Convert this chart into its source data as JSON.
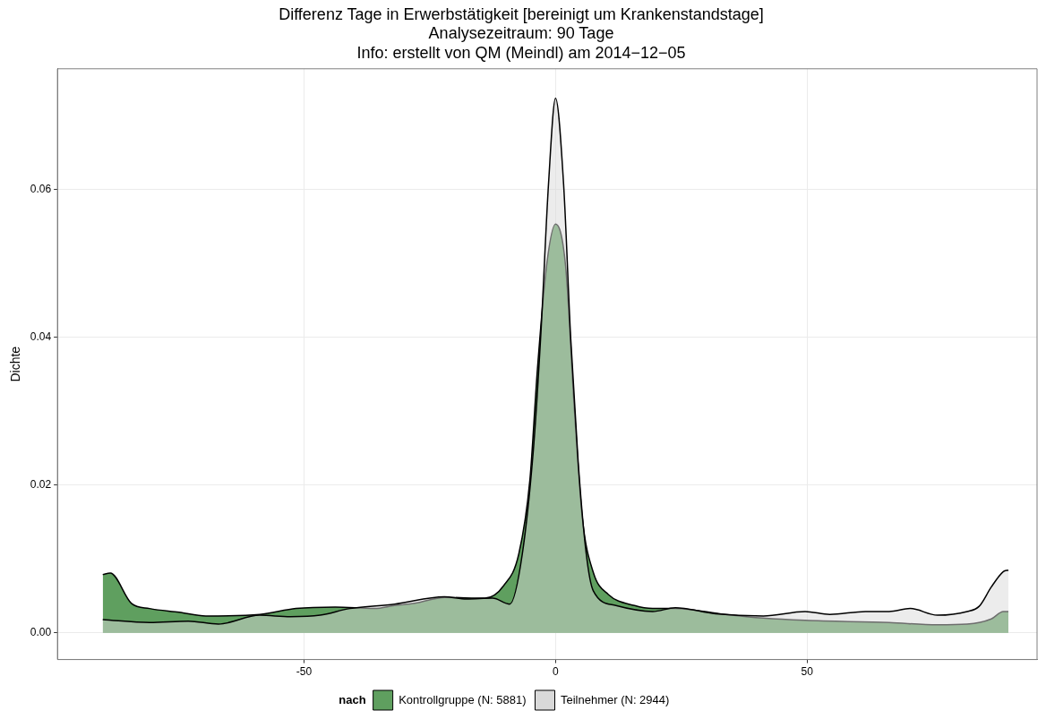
{
  "chart_data": {
    "type": "area",
    "title": "Differenz Tage in Erwerbstätigkeit [bereinigt um Krankenstandstage]",
    "subtitle": "Analysezeitraum: 90 Tage\nInfo: erstellt von QM (Meindl) am 2014−12−05",
    "ylabel": "Dichte",
    "legend_title": "nach",
    "legend": "bottom",
    "grid": true,
    "xlim": [
      -99,
      95.7
    ],
    "ylim": [
      -0.0036,
      0.0763
    ],
    "xticks": [
      -50,
      0,
      50
    ],
    "yticks": [
      {
        "value": 0,
        "label": "0.00"
      },
      {
        "value": 0.02,
        "label": "0.02"
      },
      {
        "value": 0.04,
        "label": "0.04"
      },
      {
        "value": 0.06,
        "label": "0.06"
      }
    ],
    "series": [
      {
        "name": "Kontrollgruppe (N: 5881)",
        "color": "#5f9f5f",
        "x": [
          -90,
          -88.5,
          -84.3,
          -80.7,
          -74.8,
          -69.5,
          -58.8,
          -51.6,
          -43.8,
          -36,
          -32,
          -28,
          -22,
          -14,
          -10.3,
          -7.3,
          -5.1,
          -3.6,
          -1.8,
          0,
          2,
          3.7,
          5.3,
          7.5,
          10.5,
          15.7,
          19.3,
          23.8,
          33.6,
          41.3,
          49.6,
          66.3,
          75.9,
          81.8,
          86.6,
          89,
          90
        ],
        "values": [
          0.0079,
          0.0081,
          0.004,
          0.0033,
          0.0028,
          0.0023,
          0.0025,
          0.0033,
          0.0035,
          0.0033,
          0.0037,
          0.004,
          0.0048,
          0.0047,
          0.0064,
          0.0107,
          0.0207,
          0.0357,
          0.0496,
          0.0553,
          0.0496,
          0.0307,
          0.0157,
          0.0082,
          0.0052,
          0.0037,
          0.0033,
          0.0033,
          0.0025,
          0.002,
          0.0017,
          0.0014,
          0.0011,
          0.0012,
          0.0019,
          0.0029,
          0.0029
        ]
      },
      {
        "name": "Teilnehmer (N: 2944)",
        "color": "#d9d9d9",
        "x": [
          -90,
          -80.7,
          -73,
          -67,
          -58.8,
          -52.7,
          -46.8,
          -40.9,
          -32,
          -22.1,
          -17.7,
          -12.5,
          -9.1,
          -6.6,
          -4.3,
          -2.9,
          -1.4,
          0,
          1.6,
          3,
          4.5,
          6.1,
          7.5,
          12,
          19.3,
          23.8,
          31.8,
          41.3,
          49.6,
          54.5,
          61.6,
          66.3,
          70.5,
          75.9,
          81.8,
          84.2,
          86.6,
          89,
          90
        ],
        "values": [
          0.0018,
          0.0014,
          0.0016,
          0.0012,
          0.0024,
          0.0022,
          0.0024,
          0.0033,
          0.0039,
          0.0049,
          0.0046,
          0.0047,
          0.0039,
          0.0107,
          0.0257,
          0.0407,
          0.0607,
          0.0723,
          0.0607,
          0.04,
          0.0231,
          0.0107,
          0.0057,
          0.0037,
          0.0029,
          0.0034,
          0.0026,
          0.0023,
          0.0029,
          0.0025,
          0.0029,
          0.0029,
          0.0033,
          0.0024,
          0.0029,
          0.0036,
          0.0062,
          0.0083,
          0.0085
        ]
      }
    ]
  }
}
